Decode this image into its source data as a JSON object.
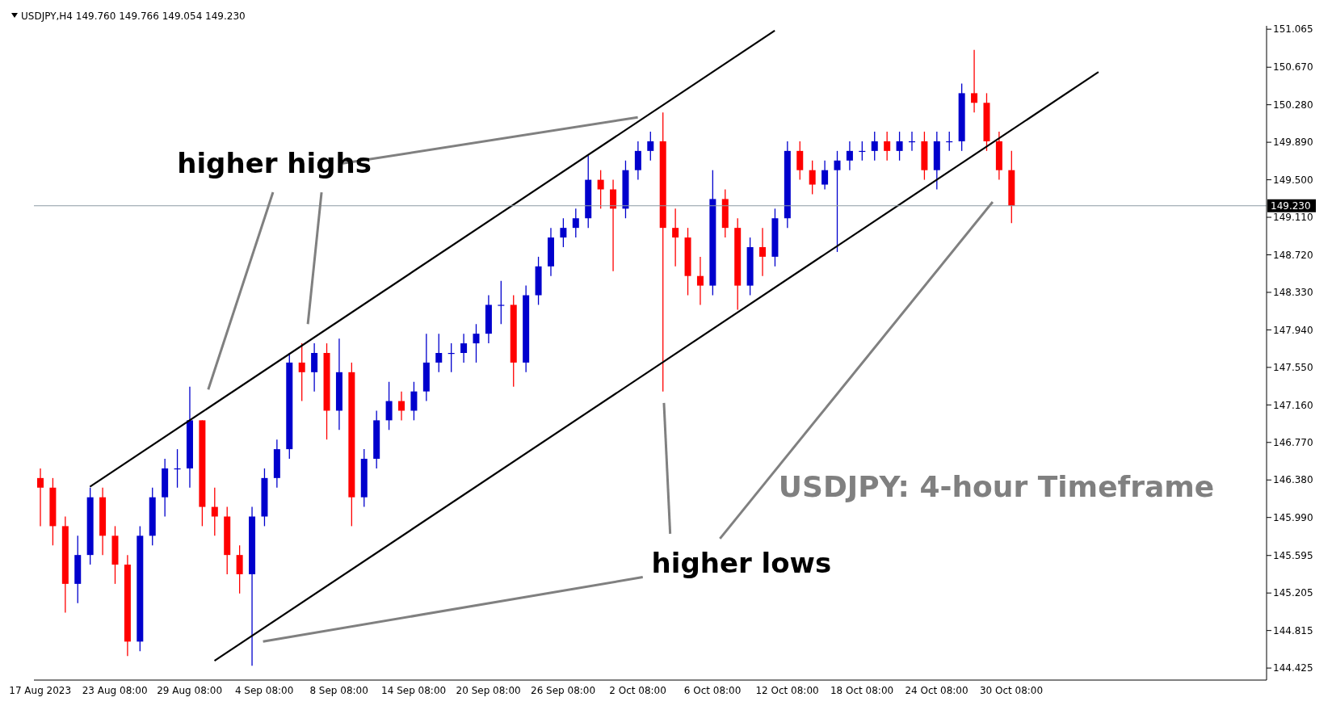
{
  "chart_data": {
    "type": "candlestick",
    "title": "USDJPY,H4  149.760 149.766 149.054 149.230",
    "annotations": [
      {
        "text": "higher highs",
        "x": "2 Oct 08:00",
        "y": 150.15
      },
      "higher lows",
      "USDJPY: 4-hour Timeframe"
    ],
    "categories": [
      "17 Aug 2023",
      null,
      null,
      null,
      null,
      null,
      "23 Aug 08:00",
      null,
      null,
      null,
      null,
      null,
      "29 Aug 08:00",
      null,
      null,
      null,
      null,
      null,
      "4 Sep 08:00",
      null,
      null,
      null,
      null,
      null,
      "8 Sep 08:00",
      null,
      null,
      null,
      null,
      null,
      "14 Sep 08:00",
      null,
      null,
      null,
      null,
      null,
      "20 Sep 08:00",
      null,
      null,
      null,
      null,
      null,
      "26 Sep 08:00",
      null,
      null,
      null,
      null,
      null,
      "2 Oct 08:00",
      null,
      null,
      null,
      null,
      null,
      "6 Oct 08:00",
      null,
      null,
      null,
      null,
      null,
      "12 Oct 08:00",
      null,
      null,
      null,
      null,
      null,
      "18 Oct 08:00",
      null,
      null,
      null,
      null,
      null,
      "24 Oct 08:00",
      null,
      null,
      null,
      null,
      null,
      "30 Oct 08:00",
      null,
      null,
      null,
      null,
      null,
      null,
      null,
      null,
      null,
      null,
      null,
      null,
      null,
      null,
      null,
      null,
      null,
      null,
      null,
      null
    ],
    "ohlc": [
      [
        146.4,
        146.5,
        145.9,
        146.3
      ],
      [
        146.3,
        146.4,
        145.7,
        145.9
      ],
      [
        145.9,
        146.0,
        145.0,
        145.3
      ],
      [
        145.3,
        145.8,
        145.1,
        145.6
      ],
      [
        145.6,
        146.3,
        145.5,
        146.2
      ],
      [
        146.2,
        146.3,
        145.6,
        145.8
      ],
      [
        145.8,
        145.9,
        145.3,
        145.5
      ],
      [
        145.5,
        145.6,
        144.55,
        144.7
      ],
      [
        144.7,
        145.9,
        144.6,
        145.8
      ],
      [
        145.8,
        146.3,
        145.7,
        146.2
      ],
      [
        146.2,
        146.6,
        146.0,
        146.5
      ],
      [
        146.5,
        146.7,
        146.3,
        146.5
      ],
      [
        146.5,
        147.35,
        146.3,
        147.0
      ],
      [
        147.0,
        147.0,
        145.9,
        146.1
      ],
      [
        146.1,
        146.3,
        145.8,
        146.0
      ],
      [
        146.0,
        146.1,
        145.4,
        145.6
      ],
      [
        145.6,
        145.7,
        145.2,
        145.4
      ],
      [
        145.4,
        146.1,
        144.45,
        146.0
      ],
      [
        146.0,
        146.5,
        145.9,
        146.4
      ],
      [
        146.4,
        146.8,
        146.3,
        146.7
      ],
      [
        146.7,
        147.7,
        146.6,
        147.6
      ],
      [
        147.6,
        147.8,
        147.2,
        147.5
      ],
      [
        147.5,
        147.8,
        147.3,
        147.7
      ],
      [
        147.7,
        147.8,
        146.8,
        147.1
      ],
      [
        147.1,
        147.85,
        146.9,
        147.5
      ],
      [
        147.5,
        147.6,
        145.9,
        146.2
      ],
      [
        146.2,
        146.7,
        146.1,
        146.6
      ],
      [
        146.6,
        147.1,
        146.5,
        147.0
      ],
      [
        147.0,
        147.4,
        146.9,
        147.2
      ],
      [
        147.2,
        147.3,
        147.0,
        147.1
      ],
      [
        147.1,
        147.4,
        147.0,
        147.3
      ],
      [
        147.3,
        147.9,
        147.2,
        147.6
      ],
      [
        147.6,
        147.9,
        147.5,
        147.7
      ],
      [
        147.7,
        147.8,
        147.5,
        147.7
      ],
      [
        147.7,
        147.9,
        147.6,
        147.8
      ],
      [
        147.8,
        148.0,
        147.6,
        147.9
      ],
      [
        147.9,
        148.3,
        147.8,
        148.2
      ],
      [
        148.2,
        148.45,
        148.0,
        148.2
      ],
      [
        148.2,
        148.3,
        147.35,
        147.6
      ],
      [
        147.6,
        148.4,
        147.5,
        148.3
      ],
      [
        148.3,
        148.7,
        148.2,
        148.6
      ],
      [
        148.6,
        149.0,
        148.5,
        148.9
      ],
      [
        148.9,
        149.1,
        148.8,
        149.0
      ],
      [
        149.0,
        149.2,
        148.9,
        149.1
      ],
      [
        149.1,
        149.75,
        149.0,
        149.5
      ],
      [
        149.5,
        149.6,
        149.2,
        149.4
      ],
      [
        149.4,
        149.5,
        148.55,
        149.2
      ],
      [
        149.2,
        149.7,
        149.1,
        149.6
      ],
      [
        149.6,
        149.9,
        149.5,
        149.8
      ],
      [
        149.8,
        150.0,
        149.7,
        149.9
      ],
      [
        149.9,
        150.2,
        147.3,
        149.0
      ],
      [
        149.0,
        149.2,
        148.6,
        148.9
      ],
      [
        148.9,
        149.0,
        148.3,
        148.5
      ],
      [
        148.5,
        148.7,
        148.2,
        148.4
      ],
      [
        148.4,
        149.6,
        148.3,
        149.3
      ],
      [
        149.3,
        149.4,
        148.9,
        149.0
      ],
      [
        149.0,
        149.1,
        148.15,
        148.4
      ],
      [
        148.4,
        148.9,
        148.3,
        148.8
      ],
      [
        148.8,
        149.0,
        148.5,
        148.7
      ],
      [
        148.7,
        149.2,
        148.6,
        149.1
      ],
      [
        149.1,
        149.9,
        149.0,
        149.8
      ],
      [
        149.8,
        149.9,
        149.5,
        149.6
      ],
      [
        149.6,
        149.7,
        149.35,
        149.45
      ],
      [
        149.45,
        149.7,
        149.4,
        149.6
      ],
      [
        149.6,
        149.8,
        148.75,
        149.7
      ],
      [
        149.7,
        149.9,
        149.6,
        149.8
      ],
      [
        149.8,
        149.9,
        149.7,
        149.8
      ],
      [
        149.8,
        150.0,
        149.7,
        149.9
      ],
      [
        149.9,
        150.0,
        149.7,
        149.8
      ],
      [
        149.8,
        150.0,
        149.7,
        149.9
      ],
      [
        149.9,
        150.0,
        149.8,
        149.9
      ],
      [
        149.9,
        150.0,
        149.5,
        149.6
      ],
      [
        149.6,
        150.0,
        149.4,
        149.9
      ],
      [
        149.9,
        150.0,
        149.8,
        149.9
      ],
      [
        149.9,
        150.5,
        149.8,
        150.4
      ],
      [
        150.4,
        150.85,
        150.2,
        150.3
      ],
      [
        150.3,
        150.4,
        149.8,
        149.9
      ],
      [
        149.9,
        150.0,
        149.5,
        149.6
      ],
      [
        149.6,
        149.8,
        149.05,
        149.23
      ],
      null,
      null,
      null,
      null,
      null,
      null,
      null,
      null,
      null,
      null,
      null,
      null,
      null,
      null,
      null,
      null,
      null,
      null,
      null,
      null
    ],
    "colors": [
      "#ff0000",
      "#ff0000",
      "#ff0000",
      "#0000cd",
      "#0000cd",
      "#ff0000",
      "#ff0000",
      "#ff0000",
      "#0000cd",
      "#0000cd",
      "#0000cd",
      "#0000cd",
      "#0000cd",
      "#ff0000",
      "#ff0000",
      "#ff0000",
      "#ff0000",
      "#0000cd",
      "#0000cd",
      "#0000cd",
      "#0000cd",
      "#ff0000",
      "#0000cd",
      "#ff0000",
      "#0000cd",
      "#ff0000",
      "#0000cd",
      "#0000cd",
      "#0000cd",
      "#ff0000",
      "#0000cd",
      "#0000cd",
      "#0000cd",
      "#0000cd",
      "#0000cd",
      "#0000cd",
      "#0000cd",
      "#0000cd",
      "#ff0000",
      "#0000cd",
      "#0000cd",
      "#0000cd",
      "#0000cd",
      "#0000cd",
      "#0000cd",
      "#ff0000",
      "#ff0000",
      "#0000cd",
      "#0000cd",
      "#0000cd",
      "#ff0000",
      "#ff0000",
      "#ff0000",
      "#ff0000",
      "#0000cd",
      "#ff0000",
      "#ff0000",
      "#0000cd",
      "#ff0000",
      "#0000cd",
      "#0000cd",
      "#ff0000",
      "#ff0000",
      "#0000cd",
      "#0000cd",
      "#0000cd",
      "#0000cd",
      "#0000cd",
      "#ff0000",
      "#0000cd",
      "#0000cd",
      "#ff0000",
      "#0000cd",
      "#0000cd",
      "#0000cd",
      "#ff0000",
      "#ff0000",
      "#ff0000",
      "#ff0000",
      null,
      null,
      null,
      null,
      null,
      null,
      null,
      null,
      null,
      null,
      null,
      null,
      null,
      null,
      null,
      null,
      null,
      null,
      null,
      null
    ],
    "series": [
      {
        "type": "line",
        "color": "#000000",
        "values": [
          null,
          null,
          null,
          null,
          146.31,
          null,
          null,
          null,
          null,
          null,
          null,
          null,
          null,
          null,
          null,
          null,
          null,
          null,
          null,
          null,
          null,
          null,
          null,
          null,
          null,
          null,
          null,
          null,
          null,
          null,
          null,
          null,
          null,
          null,
          null,
          null,
          null,
          null,
          null,
          null,
          null,
          null,
          null,
          null,
          null,
          null,
          null,
          null,
          null,
          null,
          null,
          null,
          null,
          null,
          null,
          null,
          null,
          null,
          null,
          151.05,
          null,
          null,
          null,
          null,
          null,
          null,
          null,
          null,
          null,
          null,
          null,
          null,
          null,
          null,
          null,
          null,
          null,
          null,
          null,
          null,
          null,
          null,
          null,
          null,
          null,
          null,
          null,
          null,
          null,
          null,
          null,
          null,
          null,
          null,
          null,
          null,
          null,
          null,
          null
        ]
      },
      {
        "type": "line",
        "color": "#000000",
        "values": [
          null,
          null,
          null,
          null,
          null,
          null,
          null,
          null,
          null,
          null,
          null,
          null,
          null,
          null,
          144.5,
          null,
          null,
          null,
          null,
          null,
          null,
          null,
          null,
          null,
          null,
          null,
          null,
          null,
          null,
          null,
          null,
          null,
          null,
          null,
          null,
          null,
          null,
          null,
          null,
          null,
          null,
          null,
          null,
          null,
          null,
          null,
          null,
          null,
          null,
          null,
          null,
          null,
          null,
          null,
          null,
          null,
          null,
          null,
          null,
          null,
          null,
          null,
          null,
          null,
          null,
          null,
          null,
          null,
          null,
          null,
          null,
          null,
          null,
          null,
          null,
          null,
          null,
          null,
          null,
          null,
          null,
          null,
          null,
          null,
          null,
          150.62,
          null,
          null,
          null,
          null,
          null,
          null,
          null,
          null,
          null,
          null,
          null,
          null,
          null
        ]
      }
    ],
    "ref_lines": [
      {
        "axis": "y",
        "value": 149.23,
        "label": "149.230",
        "color": "#8c9ba5"
      }
    ],
    "ylim": [
      144.3,
      151.1
    ],
    "yticks": [
      144.425,
      144.815,
      145.205,
      145.595,
      {
        "value": 145.99,
        "label": "145.990"
      },
      {
        "value": 146.38,
        "label": "146.380"
      },
      {
        "value": 146.77,
        "label": "146.770"
      },
      {
        "value": 147.16,
        "label": "147.160"
      },
      {
        "value": 147.55,
        "label": "147.550"
      },
      {
        "value": 147.94,
        "label": "147.940"
      },
      {
        "value": 148.33,
        "label": "148.330"
      },
      {
        "value": 148.72,
        "label": "148.720"
      },
      {
        "value": 149.11,
        "label": "149.110"
      },
      {
        "value": 149.5,
        "label": "149.500"
      },
      {
        "value": 149.89,
        "label": "149.890"
      },
      {
        "value": 150.28,
        "label": "150.280"
      },
      {
        "value": 150.67,
        "label": "150.670"
      },
      151.065
    ]
  }
}
